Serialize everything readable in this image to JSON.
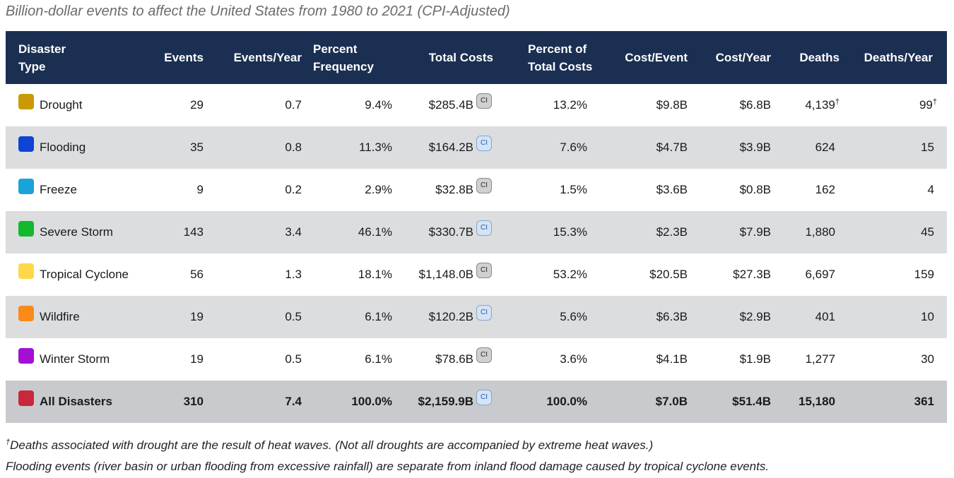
{
  "caption": "Billion-dollar events to affect the United States from 1980 to 2021 (CPI-Adjusted)",
  "headers": {
    "type_line1": "Disaster",
    "type_line2": "Type",
    "events": "Events",
    "events_year": "Events/Year",
    "pct_freq_line1": "Percent",
    "pct_freq_line2": "Frequency",
    "total_costs": "Total Costs",
    "pct_costs_line1": "Percent of",
    "pct_costs_line2": "Total Costs",
    "cost_event": "Cost/Event",
    "cost_year": "Cost/Year",
    "deaths": "Deaths",
    "deaths_year": "Deaths/Year"
  },
  "ci_label": "CI",
  "dagger": "†",
  "rows": [
    {
      "type": "Drought",
      "color": "#c99a06",
      "events": "29",
      "events_year": "0.7",
      "pct_freq": "9.4%",
      "total_costs": "$285.4B",
      "ci_style": "gray",
      "pct_costs": "13.2%",
      "cost_event": "$9.8B",
      "cost_year": "$6.8B",
      "deaths": "4,139",
      "deaths_year": "99",
      "dagger": true
    },
    {
      "type": "Flooding",
      "color": "#0d44d6",
      "events": "35",
      "events_year": "0.8",
      "pct_freq": "11.3%",
      "total_costs": "$164.2B",
      "ci_style": "blue",
      "pct_costs": "7.6%",
      "cost_event": "$4.7B",
      "cost_year": "$3.9B",
      "deaths": "624",
      "deaths_year": "15"
    },
    {
      "type": "Freeze",
      "color": "#19a3d8",
      "events": "9",
      "events_year": "0.2",
      "pct_freq": "2.9%",
      "total_costs": "$32.8B",
      "ci_style": "gray",
      "pct_costs": "1.5%",
      "cost_event": "$3.6B",
      "cost_year": "$0.8B",
      "deaths": "162",
      "deaths_year": "4"
    },
    {
      "type": "Severe Storm",
      "color": "#13b82c",
      "events": "143",
      "events_year": "3.4",
      "pct_freq": "46.1%",
      "total_costs": "$330.7B",
      "ci_style": "blue",
      "pct_costs": "15.3%",
      "cost_event": "$2.3B",
      "cost_year": "$7.9B",
      "deaths": "1,880",
      "deaths_year": "45"
    },
    {
      "type": "Tropical Cyclone",
      "color": "#ffd84a",
      "events": "56",
      "events_year": "1.3",
      "pct_freq": "18.1%",
      "total_costs": "$1,148.0B",
      "ci_style": "gray",
      "pct_costs": "53.2%",
      "cost_event": "$20.5B",
      "cost_year": "$27.3B",
      "deaths": "6,697",
      "deaths_year": "159"
    },
    {
      "type": "Wildfire",
      "color": "#fb8a19",
      "events": "19",
      "events_year": "0.5",
      "pct_freq": "6.1%",
      "total_costs": "$120.2B",
      "ci_style": "blue",
      "pct_costs": "5.6%",
      "cost_event": "$6.3B",
      "cost_year": "$2.9B",
      "deaths": "401",
      "deaths_year": "10"
    },
    {
      "type": "Winter Storm",
      "color": "#a40fd6",
      "events": "19",
      "events_year": "0.5",
      "pct_freq": "6.1%",
      "total_costs": "$78.6B",
      "ci_style": "gray",
      "pct_costs": "3.6%",
      "cost_event": "$4.1B",
      "cost_year": "$1.9B",
      "deaths": "1,277",
      "deaths_year": "30"
    }
  ],
  "total": {
    "type": "All Disasters",
    "color": "#c8283a",
    "events": "310",
    "events_year": "7.4",
    "pct_freq": "100.0%",
    "total_costs": "$2,159.9B",
    "ci_style": "blue",
    "pct_costs": "100.0%",
    "cost_event": "$7.0B",
    "cost_year": "$51.4B",
    "deaths": "15,180",
    "deaths_year": "361"
  },
  "footnotes": {
    "dagger": "†",
    "line1": "Deaths associated with drought are the result of heat waves. (Not all droughts are accompanied by extreme heat waves.)",
    "line2": "Flooding events (river basin or urban flooding from excessive rainfall) are separate from inland flood damage caused by tropical cyclone events."
  }
}
